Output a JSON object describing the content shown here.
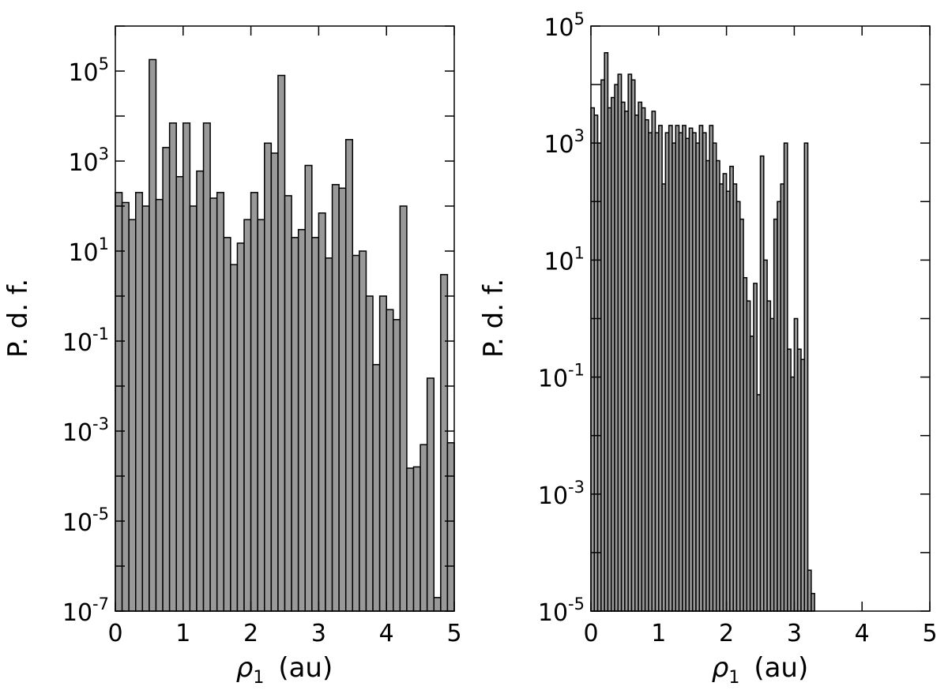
{
  "chart_data": [
    {
      "type": "bar",
      "xlabel_prefix": "ρ",
      "xlabel_sub": "1",
      "xlabel_unit": "(au)",
      "ylabel": "P. d. f.",
      "xlim": [
        0,
        5
      ],
      "ylog": true,
      "ylim_exp": [
        -7,
        6
      ],
      "xticks": [
        "0",
        "1",
        "2",
        "3",
        "4",
        "5"
      ],
      "yticks_exp": [
        "-7",
        "-5",
        "-3",
        "-1",
        "1",
        "3",
        "5"
      ],
      "bin_width": 0.1,
      "bin_starts": [
        0.0,
        0.1,
        0.2,
        0.3,
        0.4,
        0.5,
        0.6,
        0.7,
        0.8,
        0.9,
        1.0,
        1.1,
        1.2,
        1.3,
        1.4,
        1.5,
        1.6,
        1.7,
        1.8,
        1.9,
        2.0,
        2.1,
        2.2,
        2.3,
        2.4,
        2.5,
        2.6,
        2.7,
        2.8,
        2.9,
        3.0,
        3.1,
        3.2,
        3.3,
        3.4,
        3.5,
        3.6,
        3.7,
        3.8,
        3.9,
        4.0,
        4.1,
        4.2,
        4.3,
        4.4,
        4.5,
        4.6,
        4.7,
        4.8,
        4.9
      ],
      "values": [
        200,
        120,
        50,
        200,
        100,
        180000,
        140,
        2000,
        7000,
        450,
        7000,
        100,
        600,
        7000,
        150,
        200,
        20,
        5,
        15,
        50,
        200,
        50,
        2500,
        1500,
        80000,
        170,
        20,
        30,
        800,
        20,
        70,
        7,
        300,
        250,
        3000,
        8,
        10,
        1,
        0.03,
        1,
        0.5,
        0.3,
        100,
        0.00015,
        0.00016,
        0.0005,
        0.015,
        2e-07,
        3,
        0.00055
      ]
    },
    {
      "type": "bar",
      "xlabel_prefix": "ρ",
      "xlabel_sub": "1",
      "xlabel_unit": "(au)",
      "ylabel": "P. d. f.",
      "xlim": [
        0,
        5
      ],
      "ylog": true,
      "ylim_exp": [
        -5,
        5
      ],
      "xticks": [
        "0",
        "1",
        "2",
        "3",
        "4",
        "5"
      ],
      "yticks_exp": [
        "-5",
        "-3",
        "-1",
        "1",
        "3",
        "5"
      ],
      "bin_width": 0.05,
      "bin_starts": [
        0.0,
        0.05,
        0.1,
        0.15,
        0.2,
        0.25,
        0.3,
        0.35,
        0.4,
        0.45,
        0.5,
        0.55,
        0.6,
        0.65,
        0.7,
        0.75,
        0.8,
        0.85,
        0.9,
        0.95,
        1.0,
        1.05,
        1.1,
        1.15,
        1.2,
        1.25,
        1.3,
        1.35,
        1.4,
        1.45,
        1.5,
        1.55,
        1.6,
        1.65,
        1.7,
        1.75,
        1.8,
        1.85,
        1.9,
        1.95,
        2.0,
        2.05,
        2.1,
        2.15,
        2.2,
        2.25,
        2.3,
        2.35,
        2.4,
        2.45,
        2.5,
        2.55,
        2.6,
        2.65,
        2.7,
        2.75,
        2.8,
        2.85,
        2.9,
        2.95,
        3.0,
        3.05,
        3.1,
        3.15,
        3.2,
        3.25,
        3.3,
        3.35,
        3.4,
        3.45
      ],
      "values": [
        4000,
        3000,
        1000,
        12000,
        35000,
        4000,
        6000,
        10000,
        15000,
        5000,
        3500,
        15000,
        12000,
        3000,
        5000,
        4000,
        2500,
        1500,
        3500,
        1500,
        2000,
        200,
        1500,
        2000,
        1000,
        2000,
        1500,
        2000,
        1200,
        1800,
        1500,
        1000,
        2000,
        1500,
        500,
        2000,
        1000,
        500,
        200,
        300,
        150,
        400,
        200,
        100,
        50,
        5,
        2,
        0.5,
        4,
        0.05,
        600,
        10,
        2,
        1,
        50,
        100,
        200,
        1000,
        0.3,
        0.1,
        1,
        0.3,
        0.2,
        1000,
        5e-05,
        2e-05,
        null,
        null,
        null,
        null
      ]
    }
  ]
}
